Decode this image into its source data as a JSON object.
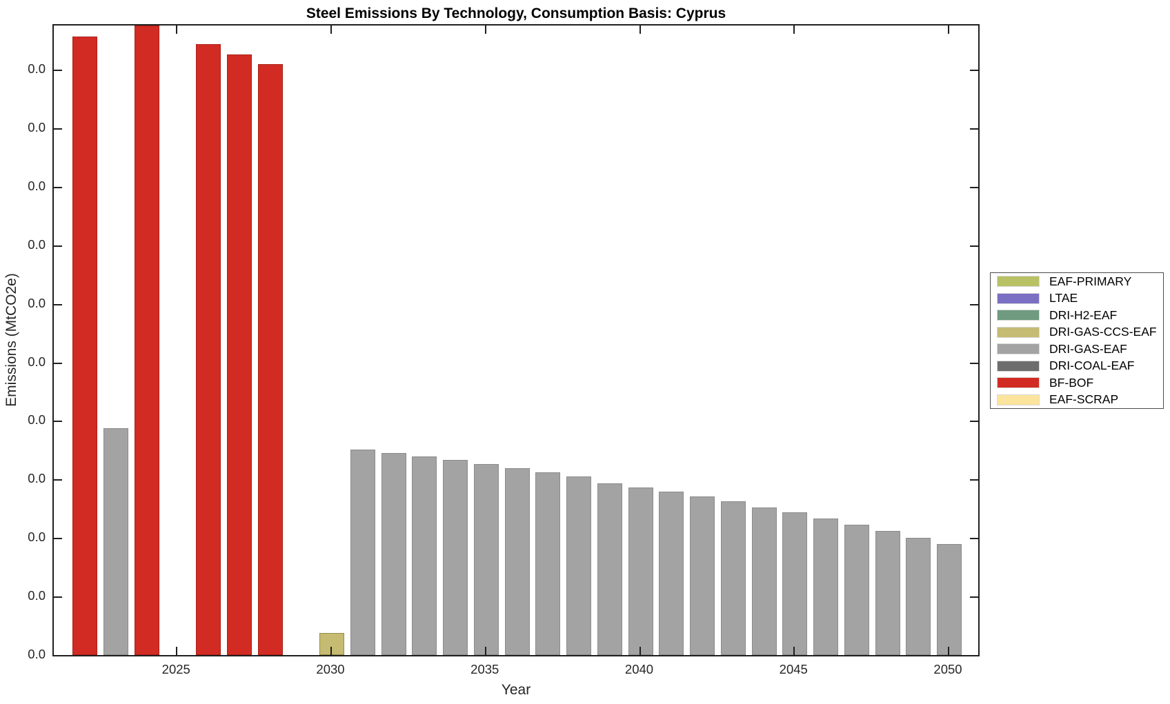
{
  "chart_data": {
    "type": "bar",
    "title": "Steel Emissions By Technology, Consumption Basis: Cyprus",
    "xlabel": "Year",
    "ylabel": "Emissions (MtCO2e)",
    "x_ticks": [
      2025,
      2030,
      2035,
      2040,
      2045,
      2050
    ],
    "xlim": [
      2021.4,
      2050.8
    ],
    "y_tick_labels": [
      "0.0",
      "0.0",
      "0.0",
      "0.0",
      "0.0",
      "0.0",
      "0.0",
      "0.0",
      "0.0",
      "0.0",
      "0.0"
    ],
    "y_axis_note": "All eleven y-axis tick labels display 0.0; bar values are recorded as fraction of full visible y-axis height",
    "ylim_fraction": [
      0,
      1.0
    ],
    "grid": false,
    "legend_position": "right-outside",
    "colors": {
      "EAF-PRIMARY": {
        "fill": "#b9c165",
        "edge": "#8e9440"
      },
      "LTAE": {
        "fill": "#7b6fc4",
        "edge": "#57499b"
      },
      "DRI-H2-EAF": {
        "fill": "#6f9b80",
        "edge": "#4d7a5e"
      },
      "DRI-GAS-CCS-EAF": {
        "fill": "#c5bb72",
        "edge": "#958c46"
      },
      "DRI-GAS-EAF": {
        "fill": "#a3a3a3",
        "edge": "#8b8b8b"
      },
      "DRI-COAL-EAF": {
        "fill": "#6d6d6d",
        "edge": "#4f4f4f"
      },
      "BF-BOF": {
        "fill": "#d22b23",
        "edge": "#a81f18"
      },
      "EAF-SCRAP": {
        "fill": "#fce49d",
        "edge": "#d8bd6f"
      }
    },
    "legend": [
      {
        "label": "EAF-PRIMARY"
      },
      {
        "label": "LTAE"
      },
      {
        "label": "DRI-H2-EAF"
      },
      {
        "label": "DRI-GAS-CCS-EAF"
      },
      {
        "label": "DRI-GAS-EAF"
      },
      {
        "label": "DRI-COAL-EAF"
      },
      {
        "label": "BF-BOF"
      },
      {
        "label": "EAF-SCRAP"
      }
    ],
    "bars": [
      {
        "year": 2022,
        "tech": "BF-BOF",
        "value_frac": 0.982
      },
      {
        "year": 2023,
        "tech": "DRI-GAS-EAF",
        "value_frac": 0.36
      },
      {
        "year": 2024,
        "tech": "BF-BOF",
        "value_frac": 1.0
      },
      {
        "year": 2026,
        "tech": "BF-BOF",
        "value_frac": 0.97
      },
      {
        "year": 2027,
        "tech": "BF-BOF",
        "value_frac": 0.954
      },
      {
        "year": 2028,
        "tech": "BF-BOF",
        "value_frac": 0.939
      },
      {
        "year": 2030,
        "tech": "DRI-GAS-CCS-EAF",
        "value_frac": 0.035
      },
      {
        "year": 2031,
        "tech": "DRI-GAS-EAF",
        "value_frac": 0.326
      },
      {
        "year": 2032,
        "tech": "DRI-GAS-EAF",
        "value_frac": 0.321
      },
      {
        "year": 2033,
        "tech": "DRI-GAS-EAF",
        "value_frac": 0.315
      },
      {
        "year": 2034,
        "tech": "DRI-GAS-EAF",
        "value_frac": 0.31
      },
      {
        "year": 2035,
        "tech": "DRI-GAS-EAF",
        "value_frac": 0.303
      },
      {
        "year": 2036,
        "tech": "DRI-GAS-EAF",
        "value_frac": 0.297
      },
      {
        "year": 2037,
        "tech": "DRI-GAS-EAF",
        "value_frac": 0.29
      },
      {
        "year": 2038,
        "tech": "DRI-GAS-EAF",
        "value_frac": 0.284
      },
      {
        "year": 2039,
        "tech": "DRI-GAS-EAF",
        "value_frac": 0.273
      },
      {
        "year": 2040,
        "tech": "DRI-GAS-EAF",
        "value_frac": 0.266
      },
      {
        "year": 2041,
        "tech": "DRI-GAS-EAF",
        "value_frac": 0.26
      },
      {
        "year": 2042,
        "tech": "DRI-GAS-EAF",
        "value_frac": 0.252
      },
      {
        "year": 2043,
        "tech": "DRI-GAS-EAF",
        "value_frac": 0.244
      },
      {
        "year": 2044,
        "tech": "DRI-GAS-EAF",
        "value_frac": 0.234
      },
      {
        "year": 2045,
        "tech": "DRI-GAS-EAF",
        "value_frac": 0.227
      },
      {
        "year": 2046,
        "tech": "DRI-GAS-EAF",
        "value_frac": 0.217
      },
      {
        "year": 2047,
        "tech": "DRI-GAS-EAF",
        "value_frac": 0.207
      },
      {
        "year": 2048,
        "tech": "DRI-GAS-EAF",
        "value_frac": 0.197
      },
      {
        "year": 2049,
        "tech": "DRI-GAS-EAF",
        "value_frac": 0.186
      },
      {
        "year": 2050,
        "tech": "DRI-GAS-EAF",
        "value_frac": 0.176
      }
    ]
  }
}
